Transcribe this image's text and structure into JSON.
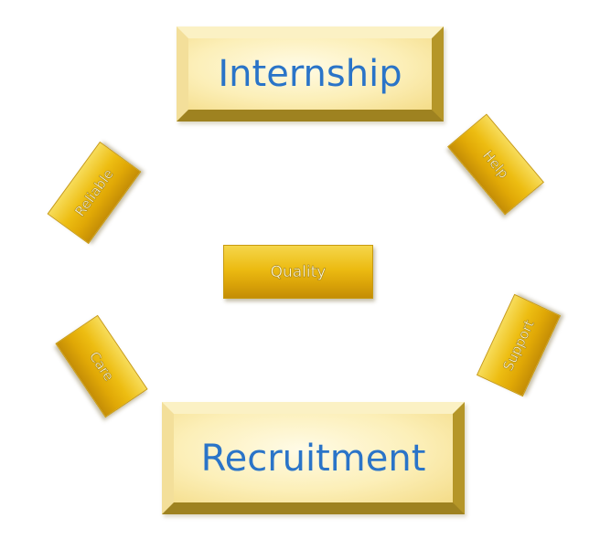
{
  "diagram": {
    "top_box": {
      "label": "Internship"
    },
    "bottom_box": {
      "label": "Recruitment"
    },
    "center_tag": {
      "label": "Quality"
    },
    "tags": {
      "reliable": "Reliable",
      "help": "Help",
      "care": "Care",
      "support": "Support"
    }
  },
  "colors": {
    "box_text": "#2a74c8",
    "box_fill": "#fcefb8",
    "tag_fill": "#edbd12"
  }
}
